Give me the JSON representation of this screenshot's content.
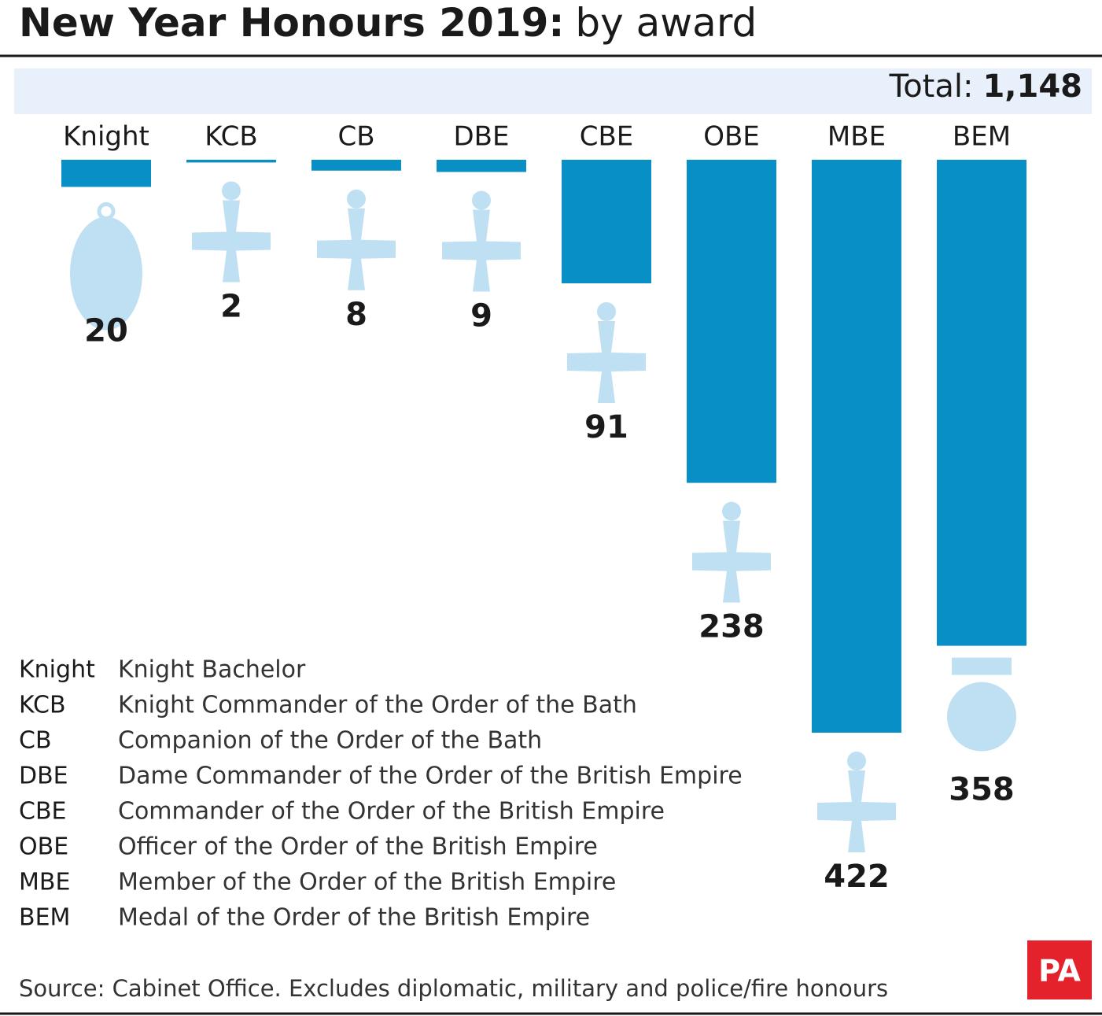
{
  "chart_data": {
    "type": "bar",
    "title": "New Year Honours 2019:",
    "subtitle": "by award",
    "total": {
      "label": "Total:",
      "value": 1148,
      "value_label": "1,148"
    },
    "categories": [
      "Knight",
      "KCB",
      "CB",
      "DBE",
      "CBE",
      "OBE",
      "MBE",
      "BEM"
    ],
    "values": [
      20,
      2,
      8,
      9,
      91,
      238,
      422,
      358
    ],
    "color": "#078fc6",
    "ylim": [
      0,
      422
    ],
    "glossary": [
      {
        "abbr": "Knight",
        "name": "Knight Bachelor"
      },
      {
        "abbr": "KCB",
        "name": "Knight Commander of the Order of the Bath"
      },
      {
        "abbr": "CB",
        "name": "Companion of the Order of the Bath"
      },
      {
        "abbr": "DBE",
        "name": "Dame Commander of the Order of the British Empire"
      },
      {
        "abbr": "CBE",
        "name": "Commander of the Order of the British Empire"
      },
      {
        "abbr": "OBE",
        "name": "Officer of the Order of the British Empire"
      },
      {
        "abbr": "MBE",
        "name": "Member of the Order of the British Empire"
      },
      {
        "abbr": "BEM",
        "name": "Medal of the Order of the British Empire"
      }
    ],
    "source": "Source: Cabinet Office. Excludes diplomatic, military and police/fire honours",
    "logo": "PA"
  }
}
